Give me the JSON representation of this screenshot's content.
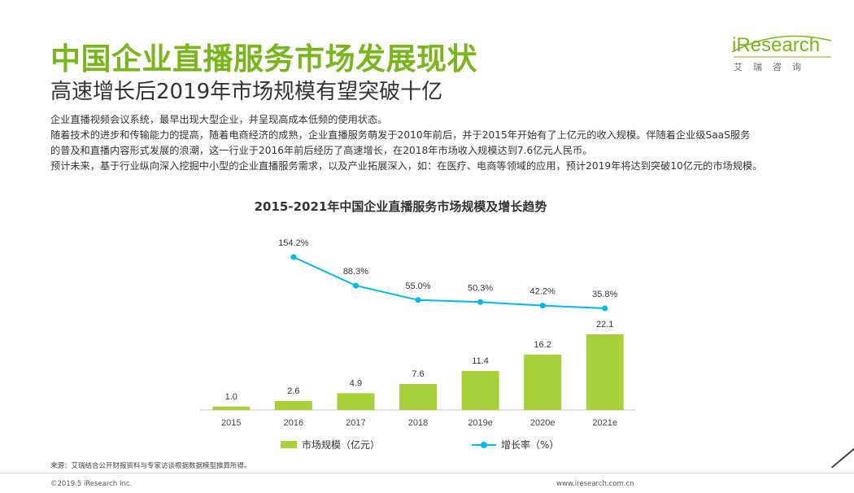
{
  "header": {
    "title": "中国企业直播服务市场发展现状",
    "subtitle": "高速增长后2019年市场规模有望突破十亿"
  },
  "logo": {
    "wordmark": "iResearch",
    "cn_name": "艾瑞咨询"
  },
  "description": [
    "企业直播视频会议系统，最早出现大型企业，并呈现高成本低频的使用状态。",
    "随着技术的进步和传输能力的提高，随着电商经济的成熟，企业直播服务萌发于2010年前后，并于2015年开始有了上亿元的收入规模。伴随着企业级SaaS服务",
    "的普及和直播内容形式发展的浪潮，这一行业于2016年前后经历了高速增长，在2018年市场收入规模达到7.6亿元人民币。",
    "预计未来，基于行业纵向深入挖掘中小型的企业直播服务需求，以及产业拓展深入，如：在医疗、电商等领域的应用，预计2019年将达到突破10亿元的市场规模。"
  ],
  "chart_data": {
    "type": "bar",
    "title": "2015-2021年中国企业直播服务市场规模及增长趋势",
    "categories": [
      "2015",
      "2016",
      "2017",
      "2018",
      "2019e",
      "2020e",
      "2021e"
    ],
    "series": [
      {
        "name": "市场规模（亿元）",
        "type": "bar",
        "values": [
          1.0,
          2.6,
          4.9,
          7.6,
          11.4,
          16.2,
          22.1
        ],
        "labels": [
          "1.0",
          "2.6",
          "4.9",
          "7.6",
          "11.4",
          "16.2",
          "22.1"
        ],
        "color": "#a7d03a"
      },
      {
        "name": "增长率（%）",
        "type": "line",
        "values": [
          null,
          154.2,
          88.3,
          55.0,
          50.3,
          42.2,
          35.8
        ],
        "labels": [
          "",
          "154.2%",
          "88.3%",
          "55.0%",
          "50.3%",
          "42.2%",
          "35.8%"
        ],
        "color": "#00b9e6"
      }
    ],
    "grid": false,
    "legend": "bottom"
  },
  "footer": {
    "source": "来源：艾瑞结合公开财报资料与专家访谈根据数据模型推算所得。",
    "copyright": "©2019.5 iResearch Inc.",
    "url": "www.iresearch.com.cn"
  }
}
